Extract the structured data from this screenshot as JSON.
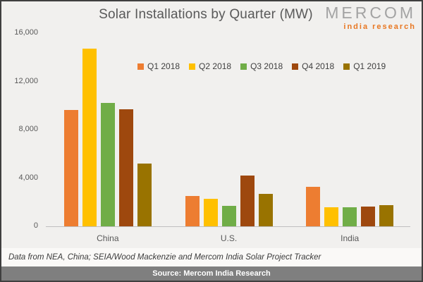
{
  "title": "Solar Installations by Quarter (MW)",
  "logo": {
    "brand": "MERCOM",
    "sub": "india research",
    "sub_color": "#e87722"
  },
  "footnote": "Data from NEA, China; SEIA/Wood Mackenzie and Mercom India Solar Project Tracker",
  "source_bar": "Source: Mercom India Research",
  "chart_data": {
    "type": "bar",
    "title": "Solar Installations by Quarter (MW)",
    "categories": [
      "China",
      "U.S.",
      "India"
    ],
    "series": [
      {
        "name": "Q1 2018",
        "color": "#ed7d31",
        "values": [
          9650,
          2500,
          3270
        ]
      },
      {
        "name": "Q2 2018",
        "color": "#ffc000",
        "values": [
          14700,
          2300,
          1600
        ]
      },
      {
        "name": "Q3 2018",
        "color": "#70ad47",
        "values": [
          10200,
          1700,
          1590
        ]
      },
      {
        "name": "Q4 2018",
        "color": "#9e480e",
        "values": [
          9700,
          4200,
          1640
        ]
      },
      {
        "name": "Q1 2019",
        "color": "#997300",
        "values": [
          5200,
          2700,
          1740
        ]
      }
    ],
    "xlabel": "",
    "ylabel": "",
    "ylim": [
      0,
      16000
    ],
    "yticks": [
      0,
      4000,
      8000,
      12000,
      16000
    ],
    "ytick_labels": [
      "0",
      "4,000",
      "8,000",
      "12,000",
      "16,000"
    ],
    "grid": false,
    "legend_position": "top"
  }
}
